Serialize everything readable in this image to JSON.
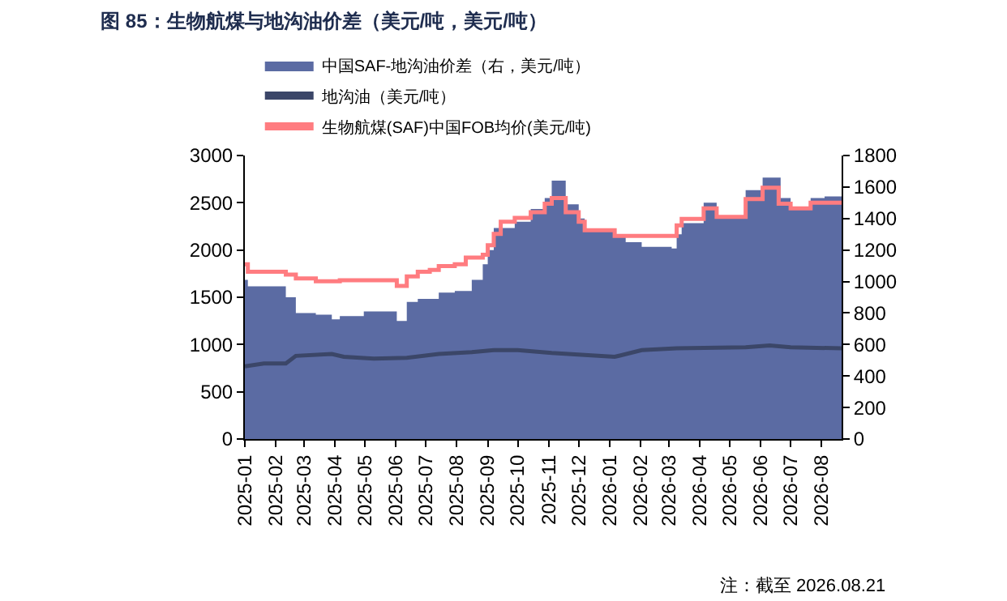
{
  "chart_data": {
    "type": "area",
    "title": "图 85：生物航煤与地沟油价差（美元/吨，美元/吨）",
    "annotations": [
      "注：截至 2026.08.21"
    ],
    "legend": "top",
    "grid": false,
    "xlim": [
      "2025-01-01",
      "2026-08-21"
    ],
    "xticks": [
      "2025-01",
      "2025-02",
      "2025-03",
      "2025-04",
      "2025-05",
      "2025-06",
      "2025-07",
      "2025-08",
      "2025-09",
      "2025-10",
      "2025-11",
      "2025-12",
      "2026-01",
      "2026-02",
      "2026-03",
      "2026-04",
      "2026-05",
      "2026-06",
      "2026-07",
      "2026-08"
    ],
    "ylim": [
      0,
      3000
    ],
    "yticks": [
      0,
      500,
      1000,
      1500,
      2000,
      2500,
      3000
    ],
    "y2lim": [
      0,
      1800
    ],
    "y2ticks": [
      0,
      200,
      400,
      600,
      800,
      1000,
      1200,
      1400,
      1600,
      1800
    ],
    "series": [
      {
        "name": "中国SAF-地沟油价差（右，美元/吨）",
        "axis": "y2",
        "color": "#5b6ba3",
        "x": [
          "2025-01-01",
          "2025-01-04",
          "2025-02-11",
          "2025-02-21",
          "2025-03-13",
          "2025-03-29",
          "2025-04-06",
          "2025-04-30",
          "2025-06-02",
          "2025-06-12",
          "2025-06-23",
          "2025-07-14",
          "2025-07-30",
          "2025-08-16",
          "2025-08-27",
          "2025-09-01",
          "2025-09-07",
          "2025-09-28",
          "2025-10-14",
          "2025-10-28",
          "2025-11-04",
          "2025-11-18",
          "2025-12-01",
          "2025-12-07",
          "2026-01-06",
          "2026-01-17",
          "2026-02-02",
          "2026-02-17",
          "2026-03-04",
          "2026-03-09",
          "2026-03-14",
          "2026-04-05",
          "2026-04-18",
          "2026-05-17",
          "2026-06-03",
          "2026-06-21",
          "2026-07-01",
          "2026-07-21",
          "2026-08-04",
          "2026-08-21"
        ],
        "values": [
          1010,
          970,
          900,
          800,
          790,
          760,
          780,
          810,
          750,
          870,
          890,
          930,
          940,
          1010,
          1110,
          1200,
          1340,
          1380,
          1460,
          1530,
          1640,
          1490,
          1400,
          1330,
          1290,
          1250,
          1220,
          1220,
          1210,
          1300,
          1370,
          1500,
          1410,
          1580,
          1660,
          1530,
          1460,
          1530,
          1540,
          1540
        ]
      },
      {
        "name": "地沟油（美元/吨）",
        "type": "line",
        "color": "#3b4668",
        "x": [
          "2025-01-01",
          "2025-01-20",
          "2025-02-11",
          "2025-02-21",
          "2025-03-29",
          "2025-04-10",
          "2025-05-10",
          "2025-06-12",
          "2025-07-14",
          "2025-08-16",
          "2025-09-07",
          "2025-10-01",
          "2025-11-04",
          "2025-12-07",
          "2026-01-06",
          "2026-02-02",
          "2026-03-09",
          "2026-05-17",
          "2026-06-10",
          "2026-07-01",
          "2026-08-21"
        ],
        "values": [
          770,
          800,
          800,
          880,
          900,
          870,
          850,
          860,
          900,
          920,
          940,
          940,
          910,
          890,
          870,
          940,
          960,
          970,
          990,
          970,
          960
        ]
      },
      {
        "name": "生物航煤(SAF)中国FOB均价(美元/吨)",
        "type": "step",
        "color": "#ff7c80",
        "x": [
          "2025-01-01",
          "2025-01-04",
          "2025-02-11",
          "2025-02-21",
          "2025-03-13",
          "2025-04-06",
          "2025-06-02",
          "2025-06-12",
          "2025-06-23",
          "2025-07-05",
          "2025-07-14",
          "2025-07-30",
          "2025-08-10",
          "2025-08-27",
          "2025-09-01",
          "2025-09-07",
          "2025-09-14",
          "2025-09-28",
          "2025-10-14",
          "2025-10-28",
          "2025-11-04",
          "2025-11-18",
          "2025-12-01",
          "2025-12-07",
          "2026-01-06",
          "2026-03-09",
          "2026-03-14",
          "2026-04-05",
          "2026-04-18",
          "2026-05-17",
          "2026-06-03",
          "2026-06-19",
          "2026-07-01",
          "2026-07-21",
          "2026-08-21"
        ],
        "values": [
          1850,
          1770,
          1740,
          1700,
          1670,
          1680,
          1620,
          1720,
          1770,
          1790,
          1830,
          1850,
          1920,
          1950,
          2050,
          2170,
          2300,
          2340,
          2400,
          2490,
          2550,
          2400,
          2300,
          2210,
          2150,
          2260,
          2330,
          2440,
          2350,
          2540,
          2660,
          2490,
          2440,
          2500,
          2500
        ]
      }
    ]
  }
}
